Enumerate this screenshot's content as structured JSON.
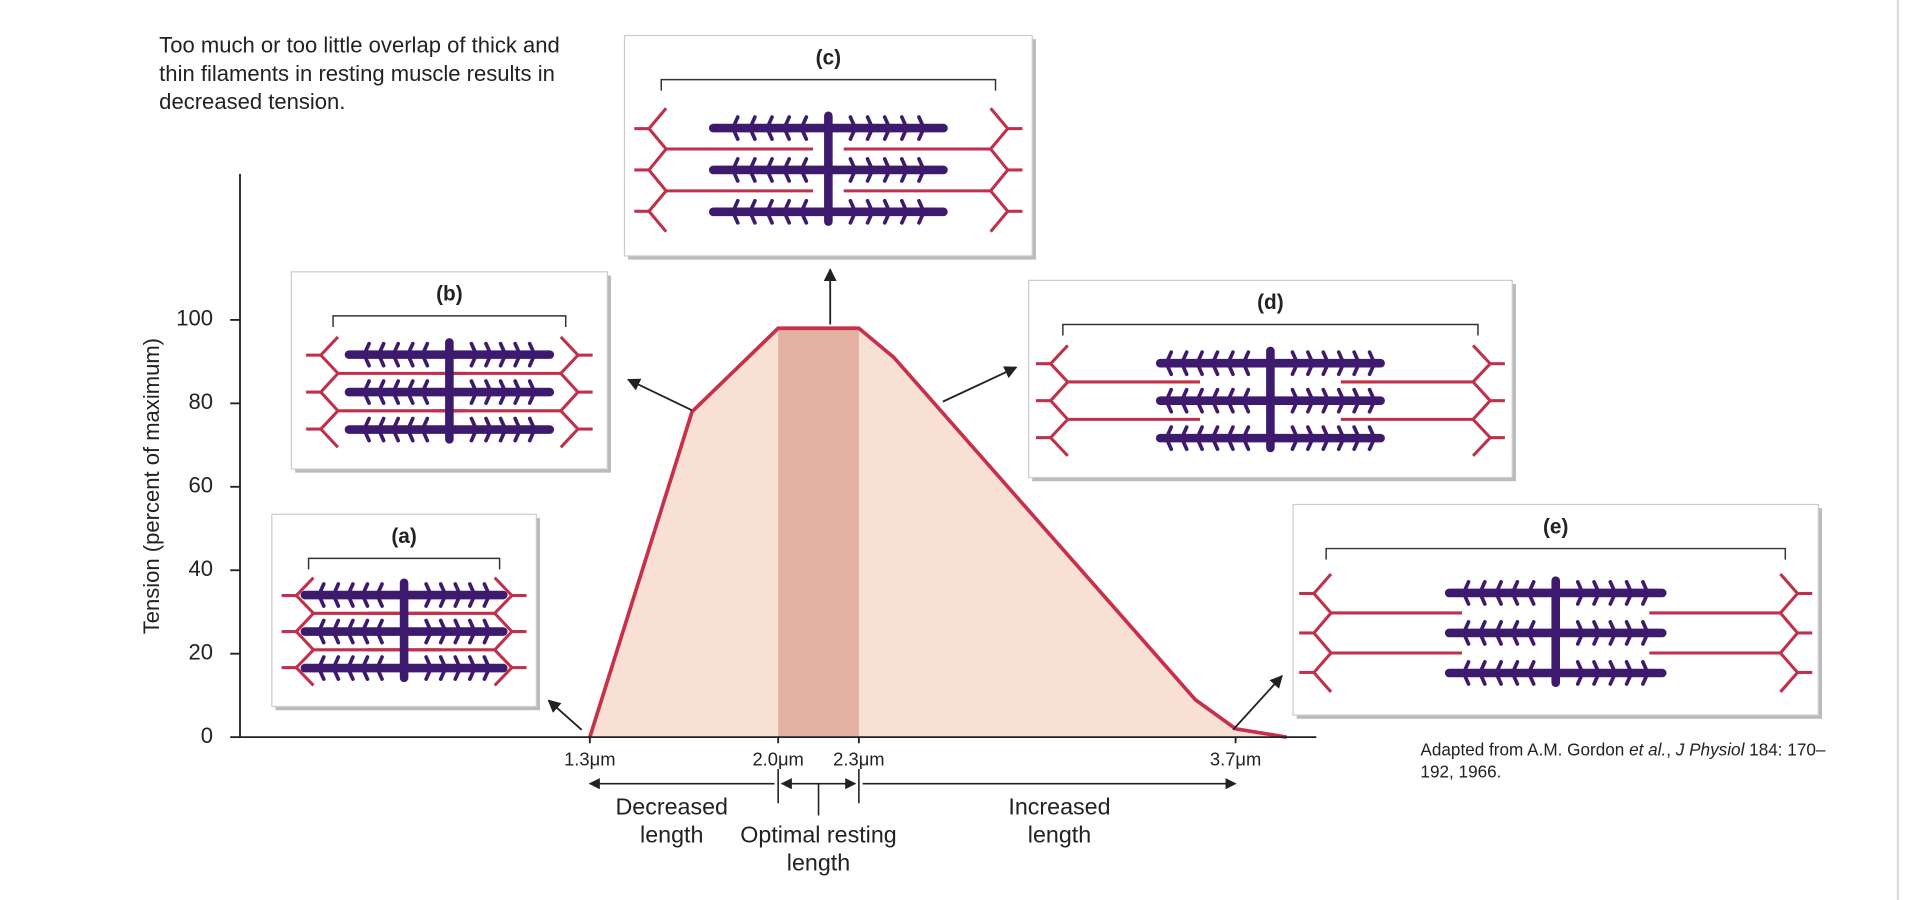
{
  "chart_data": {
    "type": "area",
    "title": "Too much or too little overlap of thick and thin filaments in resting muscle results in decreased tension.",
    "ylabel": "Tension (percent of maximum)",
    "x": [
      1.3,
      1.68,
      2.0,
      2.3,
      2.43,
      3.55,
      3.7,
      3.89
    ],
    "values": [
      0,
      78,
      98,
      98,
      91,
      9,
      2,
      0
    ],
    "color": "#c8304a",
    "fill": "#f9e0d4",
    "xlim": [
      0,
      4
    ],
    "ylim": [
      0,
      135
    ],
    "xticks": [
      {
        "value": 1.3,
        "label": "1.3μm"
      },
      {
        "value": 2.0,
        "label": "2.0μm"
      },
      {
        "value": 2.3,
        "label": "2.3μm"
      },
      {
        "value": 3.7,
        "label": "3.7μm"
      }
    ],
    "yticks": [
      0,
      20,
      40,
      60,
      80,
      100
    ],
    "highlight_range": [
      2.0,
      2.3
    ],
    "highlight_color": "#e3b2a2",
    "annotations": [
      "Decreased length",
      "Optimal resting length",
      "Increased length"
    ],
    "source": [
      "Adapted from A.M. Gordon ",
      "et al.",
      ", ",
      "J Physiol",
      " 184: 170–192, 1966."
    ]
  },
  "panel_labels": [
    "(a)",
    "(b)",
    "(c)",
    "(d)",
    "(e)"
  ]
}
